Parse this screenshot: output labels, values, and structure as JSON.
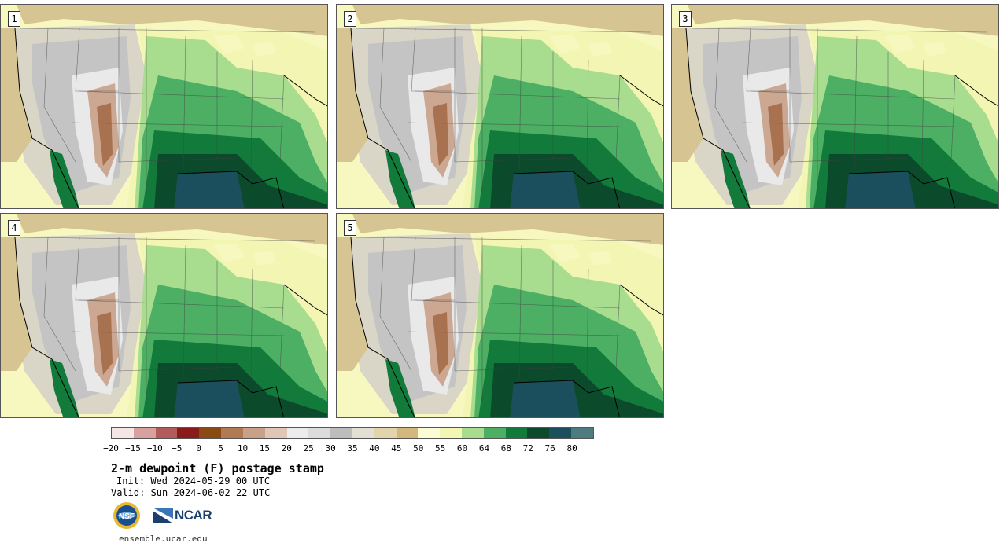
{
  "panels": [
    {
      "label": "1"
    },
    {
      "label": "2"
    },
    {
      "label": "3"
    },
    {
      "label": "4"
    },
    {
      "label": "5"
    }
  ],
  "colorbar": {
    "colors": [
      "#f5e6e6",
      "#d9a0a0",
      "#b35a5a",
      "#8b1a1a",
      "#8a4a12",
      "#b07a55",
      "#c9a088",
      "#e0c6b6",
      "#ececec",
      "#dcdcdc",
      "#bdbdbd",
      "#e2e0d4",
      "#e3d5ab",
      "#d2b87c",
      "#fbfcd6",
      "#f4f7b4",
      "#a8dc8f",
      "#4caf63",
      "#127a3a",
      "#0b4a2a",
      "#1c4f5e",
      "#4d7b80"
    ],
    "ticks": [
      "−20",
      "−15",
      "−10",
      "−5",
      "0",
      "5",
      "10",
      "15",
      "20",
      "25",
      "30",
      "35",
      "40",
      "45",
      "50",
      "55",
      "60",
      "64",
      "68",
      "72",
      "76",
      "80"
    ]
  },
  "title": "2-m dewpoint (F) postage stamp",
  "init": "Init: Wed 2024-05-29 00 UTC",
  "valid": "Valid: Sun 2024-06-02 22 UTC",
  "logos": {
    "nsf": "NSF",
    "ncar": "NCAR"
  },
  "site": "ensemble.ucar.edu"
}
